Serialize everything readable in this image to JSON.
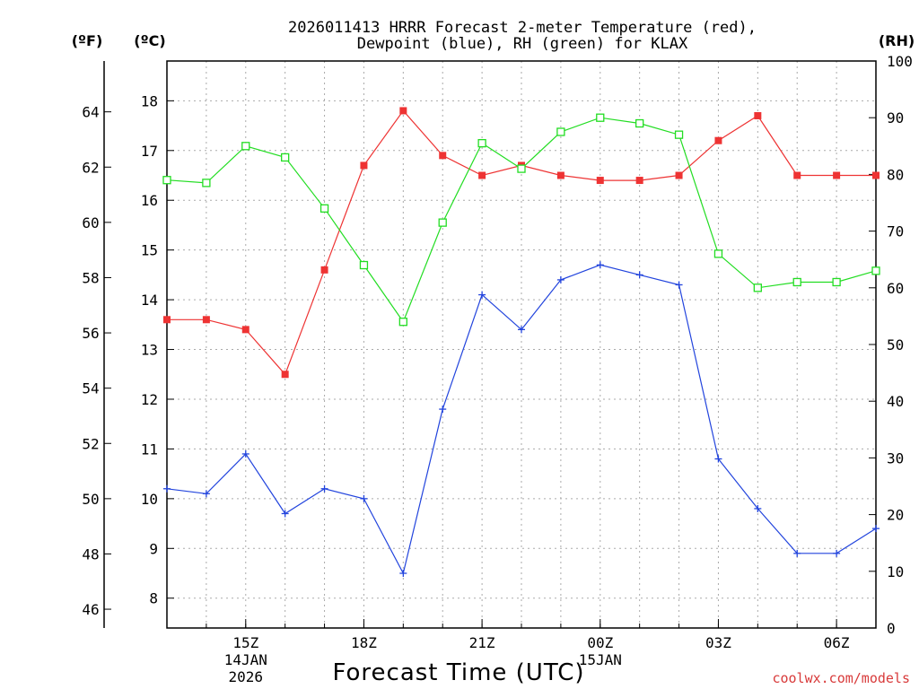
{
  "chart_data": {
    "type": "line",
    "title_lines": [
      "2026011413 HRRR Forecast 2-meter Temperature (red),",
      "Dewpoint (blue), RH (green) for KLAX"
    ],
    "units": {
      "fahrenheit": "(ºF)",
      "celsius": "(ºC)",
      "rh": "(RH)"
    },
    "xlabel": "Forecast Time (UTC)",
    "credit": "coolwx.com/models",
    "hours": [
      13,
      14,
      15,
      16,
      17,
      18,
      19,
      20,
      21,
      22,
      23,
      24,
      25,
      26,
      27,
      28,
      29,
      30,
      31
    ],
    "xlim": [
      13,
      31
    ],
    "x_ticks": [
      {
        "hour": 15,
        "label": "15Z"
      },
      {
        "hour": 18,
        "label": "18Z"
      },
      {
        "hour": 21,
        "label": "21Z"
      },
      {
        "hour": 24,
        "label": "00Z"
      },
      {
        "hour": 27,
        "label": "03Z"
      },
      {
        "hour": 30,
        "label": "06Z"
      }
    ],
    "date_labels": [
      {
        "hour": 15,
        "lines": [
          "14JAN",
          "2026"
        ]
      },
      {
        "hour": 24,
        "lines": [
          "15JAN"
        ]
      }
    ],
    "celsius_axis": {
      "ylim": [
        7.4,
        18.8
      ],
      "ticks": [
        8,
        9,
        10,
        11,
        12,
        13,
        14,
        15,
        16,
        17,
        18
      ]
    },
    "fahrenheit_ticks": [
      46,
      48,
      50,
      52,
      54,
      56,
      58,
      60,
      62,
      64
    ],
    "rh_axis": {
      "ylim": [
        0,
        100
      ],
      "ticks": [
        0,
        10,
        20,
        30,
        40,
        50,
        60,
        70,
        80,
        90,
        100
      ]
    },
    "series": [
      {
        "name": "Temperature",
        "color": "#ee3333",
        "axis": "celsius",
        "marker": "filled-square",
        "values": [
          13.6,
          13.6,
          13.4,
          12.5,
          14.6,
          16.7,
          17.8,
          16.9,
          16.5,
          16.7,
          16.5,
          16.4,
          16.4,
          16.5,
          17.2,
          17.7,
          16.5,
          16.5,
          16.5
        ]
      },
      {
        "name": "Dewpoint",
        "color": "#2244dd",
        "axis": "celsius",
        "marker": "plus",
        "values": [
          10.2,
          10.1,
          10.9,
          9.7,
          10.2,
          10.0,
          8.5,
          11.8,
          14.1,
          13.4,
          14.4,
          14.7,
          14.5,
          14.3,
          10.8,
          9.8,
          8.9,
          8.9,
          9.4
        ]
      },
      {
        "name": "RH",
        "color": "#22dd22",
        "axis": "rh",
        "marker": "open-square",
        "values": [
          79,
          78.5,
          85,
          83,
          74,
          64,
          54,
          71.5,
          85.5,
          81,
          87.5,
          90,
          89,
          87,
          66,
          60,
          61,
          61,
          63
        ]
      }
    ]
  }
}
